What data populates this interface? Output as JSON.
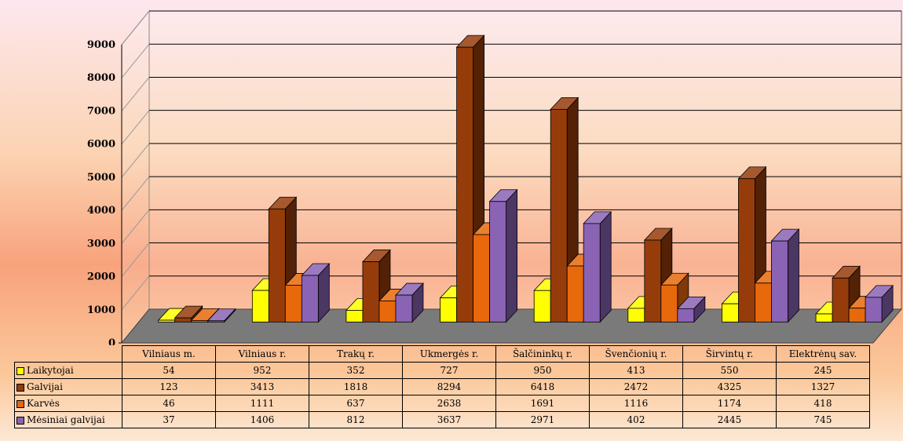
{
  "chart_data": {
    "type": "bar",
    "categories": [
      "Vilniaus m.",
      "Vilniaus r.",
      "Trakų r.",
      "Ukmergės r.",
      "Šalčininkų r.",
      "Švenčionių r.",
      "Širvintų r.",
      "Elektrėnų sav."
    ],
    "series": [
      {
        "name": "Laikytojai",
        "color": "#ffff00",
        "values": [
          54,
          952,
          352,
          727,
          950,
          413,
          550,
          245
        ]
      },
      {
        "name": "Galvijai",
        "color": "#963c0a",
        "values": [
          123,
          3413,
          1818,
          8294,
          6418,
          2472,
          4325,
          1327
        ]
      },
      {
        "name": "Karvės",
        "color": "#e8680c",
        "values": [
          46,
          1111,
          637,
          2638,
          1691,
          1116,
          1174,
          418
        ]
      },
      {
        "name": "Mėsiniai galvijai",
        "color": "#8a63b5",
        "values": [
          37,
          1406,
          812,
          3637,
          2971,
          402,
          2445,
          745
        ]
      }
    ],
    "y_ticks": [
      "0",
      "1000",
      "2000",
      "3000",
      "4000",
      "5000",
      "6000",
      "7000",
      "8000",
      "9000"
    ],
    "ylim": [
      0,
      9000
    ],
    "grid": true,
    "legend": "data-table"
  }
}
